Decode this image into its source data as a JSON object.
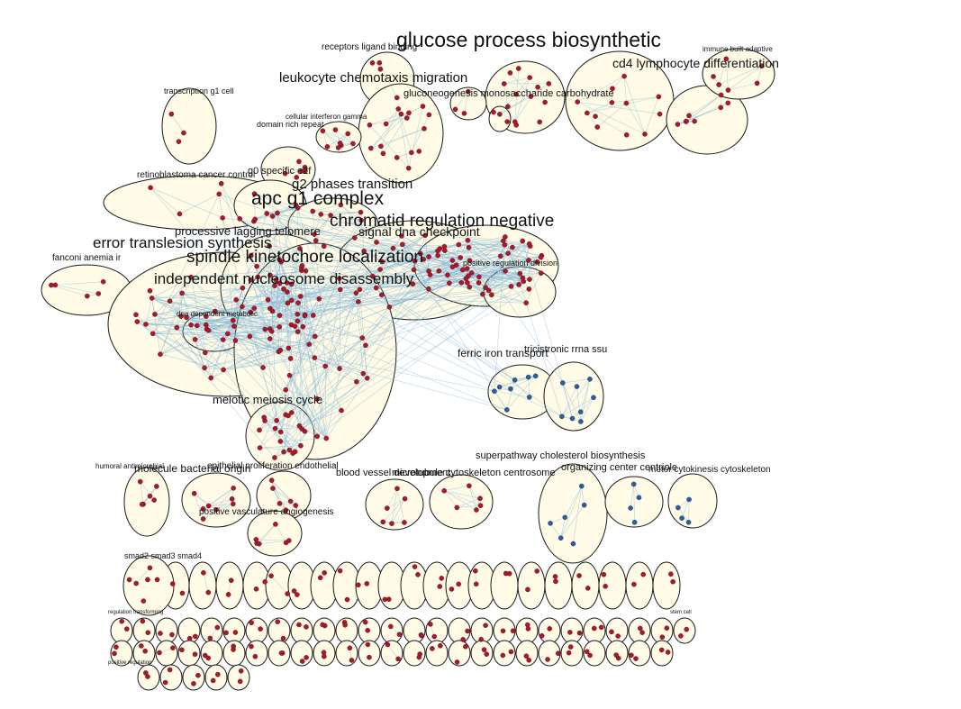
{
  "clusters": [
    {
      "id": "glucose-process-biosynthetic",
      "label": "glucose process biosynthetic"
    },
    {
      "id": "receptors-ligand-binding",
      "label": "receptors ligand binding"
    },
    {
      "id": "cd4-lymphocyte-differentiation",
      "label": "cd4 lymphocyte differentiation"
    },
    {
      "id": "immune-built-adaptive",
      "label": "immune built adaptive"
    },
    {
      "id": "leukocyte-chemotaxis-migration",
      "label": "leukocyte chemotaxis migration"
    },
    {
      "id": "gluconeogenesis-monosaccharide-carbohydrate",
      "label": "gluconeogenesis monosaccharide carbohydrate"
    },
    {
      "id": "transcription-g1-cell",
      "label": "transcription g1 cell"
    },
    {
      "id": "cellular-interferon-gamma",
      "label": "cellular interferon gamma"
    },
    {
      "id": "domain-rich-repeat",
      "label": "domain rich repeat"
    },
    {
      "id": "retinoblastoma-cancer-control",
      "label": "retinoblastoma cancer control"
    },
    {
      "id": "g0-specific-e2f",
      "label": "g0 specific e2f"
    },
    {
      "id": "g2-phases-transition",
      "label": "g2 phases transition"
    },
    {
      "id": "apc-g1-complex",
      "label": "apc g1 complex"
    },
    {
      "id": "chromatid-regulation-negative",
      "label": "chromatid regulation negative"
    },
    {
      "id": "processive-lagging-telomere",
      "label": "processive lagging telomere"
    },
    {
      "id": "signal-dna-checkpoint",
      "label": "signal dna checkpoint"
    },
    {
      "id": "error-translesion-synthesis",
      "label": "error translesion synthesis"
    },
    {
      "id": "fanconi-anemia-ir",
      "label": "fanconi anemia ir"
    },
    {
      "id": "spindle-kinetochore-localization",
      "label": "spindle kinetochore localization"
    },
    {
      "id": "positive-regulation-division",
      "label": "positive regulation division"
    },
    {
      "id": "independent-nucleosome-disassembly",
      "label": "independent nucleosome disassembly"
    },
    {
      "id": "dna-dependent-metabolic",
      "label": "dna dependent metabolic"
    },
    {
      "id": "ferric-iron-transport",
      "label": "ferric iron transport"
    },
    {
      "id": "tricistronic-rrna-ssu",
      "label": "tricistronic rrna ssu"
    },
    {
      "id": "meiotic-meiosis-cycle",
      "label": "meiotic meiosis cycle"
    },
    {
      "id": "superpathway-cholesterol-biosynthesis",
      "label": "superpathway cholesterol biosynthesis"
    },
    {
      "id": "humoral-antimicrobial",
      "label": "humoral antimicrobial"
    },
    {
      "id": "molecule-bacterial-origin",
      "label": "molecule bacterial origin"
    },
    {
      "id": "epithelial-proliferation-endothelial",
      "label": "epithelial proliferation endothelial"
    },
    {
      "id": "blood-vessel-development",
      "label": "blood vessel development"
    },
    {
      "id": "microtubule-cytoskeleton-centrosome",
      "label": "microtubule cytoskeleton centrosome"
    },
    {
      "id": "organizing-center-centriole",
      "label": "organizing center centriole"
    },
    {
      "id": "motor-cytokinesis-cytoskeleton",
      "label": "motor cytokinesis cytoskeleton"
    },
    {
      "id": "positive-vasculature-angiogenesis",
      "label": "positive vasculature angiogenesis"
    },
    {
      "id": "smad2-smad3-smad4",
      "label": "smad2 smad3 smad4"
    },
    {
      "id": "regulation-transforming",
      "label": "regulation transforming"
    },
    {
      "id": "positive-regulation",
      "label": "positive regulation"
    },
    {
      "id": "stem-cell",
      "label": "stem cell"
    }
  ]
}
